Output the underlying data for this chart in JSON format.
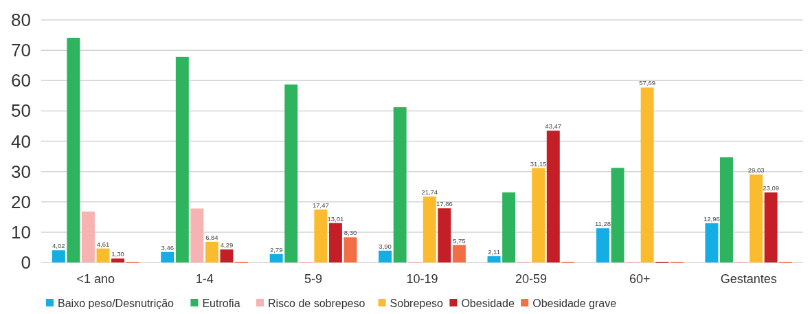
{
  "chart_data": {
    "type": "bar",
    "categories": [
      "<1 ano",
      "1-4",
      "5-9",
      "10-19",
      "20-59",
      "60+",
      "Gestantes"
    ],
    "series": [
      {
        "name": "Baixo peso/Desnutrição",
        "color": "#14ade4",
        "values": [
          4.02,
          3.46,
          2.79,
          3.9,
          2.11,
          11.28,
          12.96
        ],
        "value_labels": [
          "4,02",
          "3,46",
          "2,79",
          "3,90",
          "2,11",
          "11,28",
          "12,96"
        ]
      },
      {
        "name": "Eutrofia",
        "color": "#2eb35f",
        "values": [
          74.1,
          67.8,
          58.7,
          51.2,
          23.1,
          31.2,
          34.7
        ]
      },
      {
        "name": "Risco de sobrepeso",
        "color": "#f7b2b2",
        "values": [
          16.8,
          17.8,
          0,
          0,
          0,
          0,
          0
        ]
      },
      {
        "name": "Sobrepeso",
        "color": "#fbbb2e",
        "values": [
          4.61,
          6.84,
          17.47,
          21.74,
          31.15,
          57.69,
          29.03
        ],
        "value_labels": [
          "4,61",
          "6,84",
          "17,47",
          "21,74",
          "31,15",
          "57,69",
          "29,03"
        ]
      },
      {
        "name": "Obesidade",
        "color": "#c41f26",
        "values": [
          1.3,
          4.29,
          13.01,
          17.86,
          43.47,
          0,
          23.09
        ],
        "value_labels": [
          "1,30",
          "4,29",
          "13,01",
          "17,86",
          "43,47",
          null,
          "23,09"
        ]
      },
      {
        "name": "Obesidade grave",
        "color": "#f26f46",
        "values": [
          0,
          0,
          8.3,
          5.75,
          0,
          0,
          0
        ],
        "value_labels": [
          null,
          null,
          "8,30",
          "5,75",
          null,
          null,
          null
        ]
      }
    ],
    "ylim": [
      0,
      80
    ],
    "yticks": [
      0,
      10,
      20,
      30,
      40,
      50,
      60,
      70,
      80
    ],
    "grid": "y",
    "legend": "bottom"
  }
}
